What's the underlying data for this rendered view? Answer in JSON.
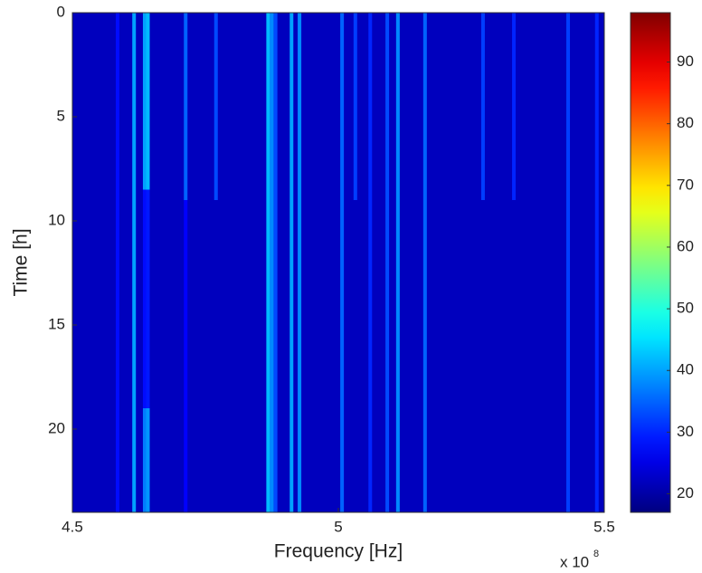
{
  "chart_data": {
    "type": "spectrogram",
    "xlabel": "Frequency [Hz]",
    "ylabel": "Time [h]",
    "x_offset_label": "x 10",
    "x_offset_exponent": "8",
    "xlim": [
      450000000,
      550000000
    ],
    "xticks": [
      {
        "value": 450000000,
        "label": "4.5"
      },
      {
        "value": 500000000,
        "label": "5"
      },
      {
        "value": 550000000,
        "label": "5.5"
      }
    ],
    "ylim": [
      0,
      24
    ],
    "y_reversed": true,
    "yticks": [
      0,
      5,
      10,
      15,
      20
    ],
    "colormap": "jet",
    "clim": [
      17,
      98
    ],
    "cticks": [
      20,
      30,
      40,
      50,
      60,
      70,
      80,
      90
    ],
    "background": 22,
    "lines": [
      {
        "frequency": 458500000,
        "t_start": 0,
        "t_end": 24,
        "level": 28
      },
      {
        "frequency": 461600000,
        "t_start": 0,
        "t_end": 24,
        "level": 40
      },
      {
        "frequency": 463600000,
        "t_start": 0,
        "t_end": 8.5,
        "level": 40
      },
      {
        "frequency": 464200000,
        "t_start": 0,
        "t_end": 8.5,
        "level": 42
      },
      {
        "frequency": 463600000,
        "t_start": 8.5,
        "t_end": 19,
        "level": 28
      },
      {
        "frequency": 464200000,
        "t_start": 8.5,
        "t_end": 19,
        "level": 29
      },
      {
        "frequency": 463600000,
        "t_start": 19,
        "t_end": 24,
        "level": 37
      },
      {
        "frequency": 464200000,
        "t_start": 19,
        "t_end": 24,
        "level": 39
      },
      {
        "frequency": 471300000,
        "t_start": 0,
        "t_end": 9,
        "level": 35
      },
      {
        "frequency": 471300000,
        "t_start": 9,
        "t_end": 24,
        "level": 27
      },
      {
        "frequency": 477000000,
        "t_start": 0,
        "t_end": 9,
        "level": 33
      },
      {
        "frequency": 486800000,
        "t_start": 0,
        "t_end": 24,
        "level": 42
      },
      {
        "frequency": 487500000,
        "t_start": 0,
        "t_end": 24,
        "level": 38
      },
      {
        "frequency": 488200000,
        "t_start": 0,
        "t_end": 24,
        "level": 33
      },
      {
        "frequency": 491200000,
        "t_start": 0,
        "t_end": 24,
        "level": 40
      },
      {
        "frequency": 492700000,
        "t_start": 0,
        "t_end": 24,
        "level": 38
      },
      {
        "frequency": 500700000,
        "t_start": 0,
        "t_end": 24,
        "level": 35
      },
      {
        "frequency": 503200000,
        "t_start": 0,
        "t_end": 9,
        "level": 32
      },
      {
        "frequency": 506000000,
        "t_start": 0,
        "t_end": 24,
        "level": 30
      },
      {
        "frequency": 509200000,
        "t_start": 0,
        "t_end": 24,
        "level": 33
      },
      {
        "frequency": 511200000,
        "t_start": 0,
        "t_end": 24,
        "level": 38
      },
      {
        "frequency": 516300000,
        "t_start": 0,
        "t_end": 24,
        "level": 35
      },
      {
        "frequency": 527200000,
        "t_start": 0,
        "t_end": 9,
        "level": 32
      },
      {
        "frequency": 533000000,
        "t_start": 0,
        "t_end": 9,
        "level": 30
      },
      {
        "frequency": 543200000,
        "t_start": 0,
        "t_end": 24,
        "level": 32
      },
      {
        "frequency": 548600000,
        "t_start": 0,
        "t_end": 24,
        "level": 30
      }
    ]
  }
}
